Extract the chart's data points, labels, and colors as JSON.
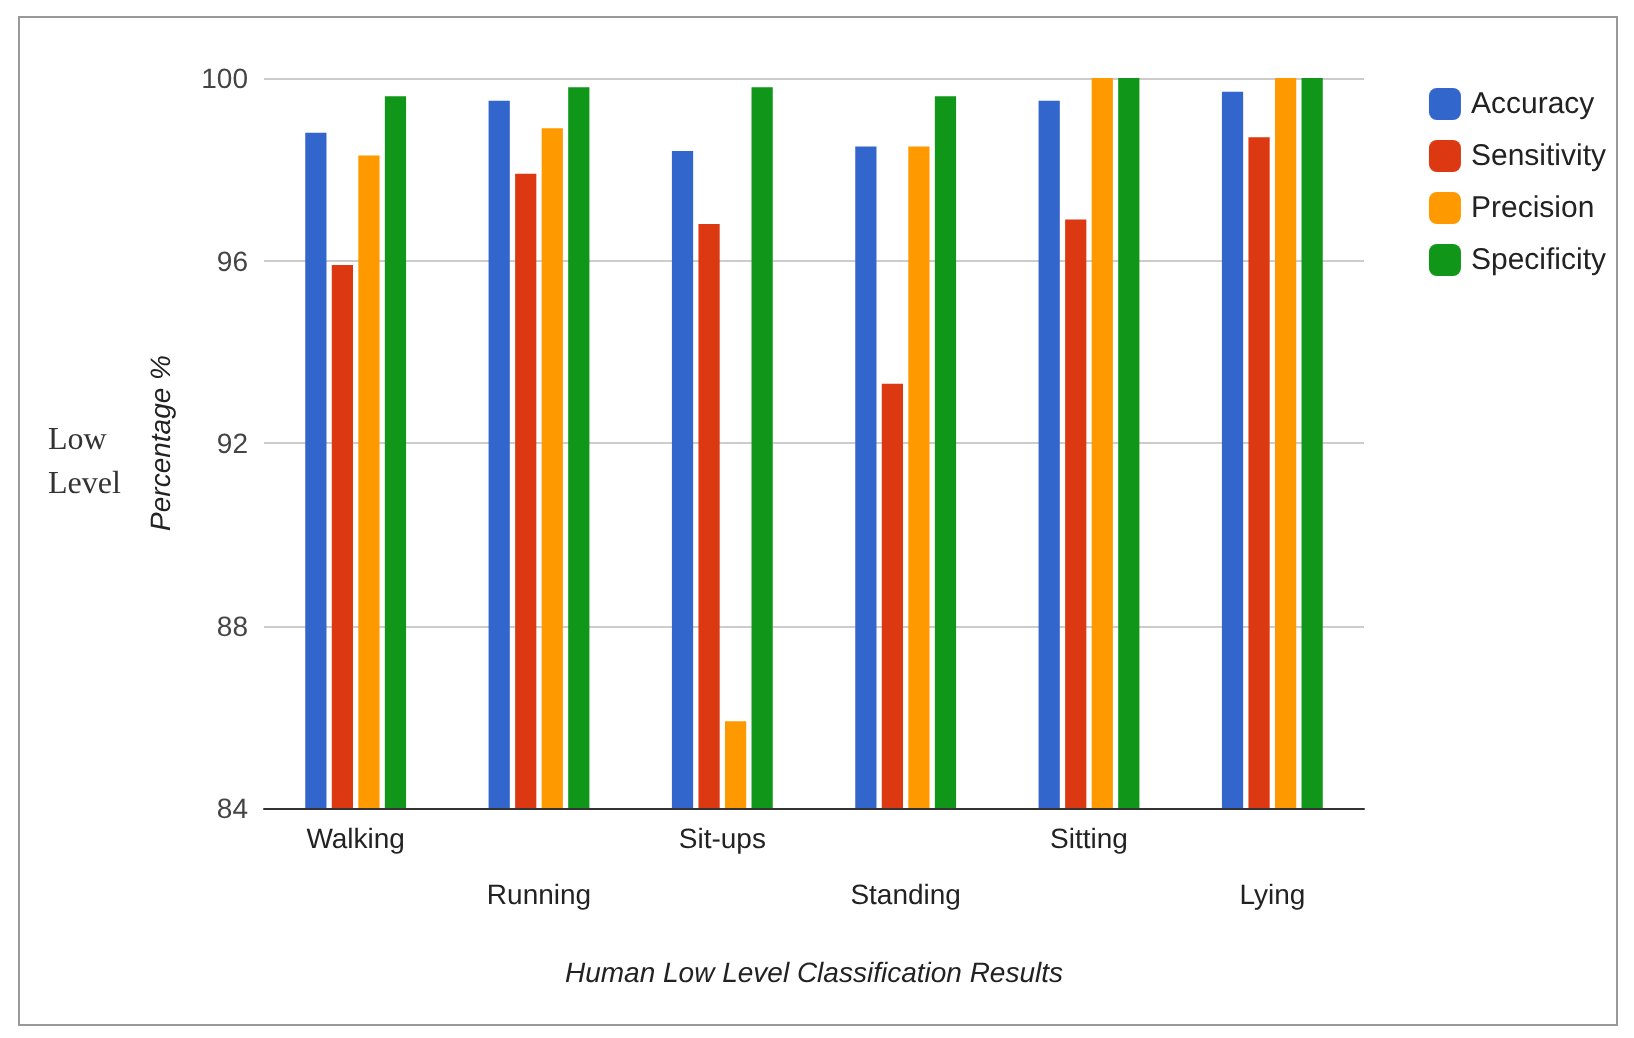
{
  "chart_data": {
    "type": "bar",
    "xlabel": "Human Low Level Classification Results",
    "ylabel": "Percentage %",
    "annotations": [
      "Low\nLevel"
    ],
    "categories": [
      "Walking",
      "Running",
      "Sit-ups",
      "Standing",
      "Sitting",
      "Lying"
    ],
    "series": [
      {
        "name": "Accuracy",
        "color": "#3366cc",
        "values": [
          98.8,
          99.5,
          98.4,
          98.5,
          99.5,
          99.7
        ]
      },
      {
        "name": "Sensitivity",
        "color": "#dc3912",
        "values": [
          95.9,
          97.9,
          96.8,
          93.3,
          96.9,
          98.7
        ]
      },
      {
        "name": "Precision",
        "color": "#ff9900",
        "values": [
          98.3,
          98.9,
          85.9,
          98.5,
          100,
          100
        ]
      },
      {
        "name": "Specificity",
        "color": "#109618",
        "values": [
          99.6,
          99.8,
          99.8,
          99.6,
          100,
          100
        ]
      }
    ],
    "ylim": [
      84,
      100
    ],
    "yticks": [
      84,
      88,
      92,
      96,
      100
    ],
    "grid": "y",
    "legend": "top right"
  }
}
